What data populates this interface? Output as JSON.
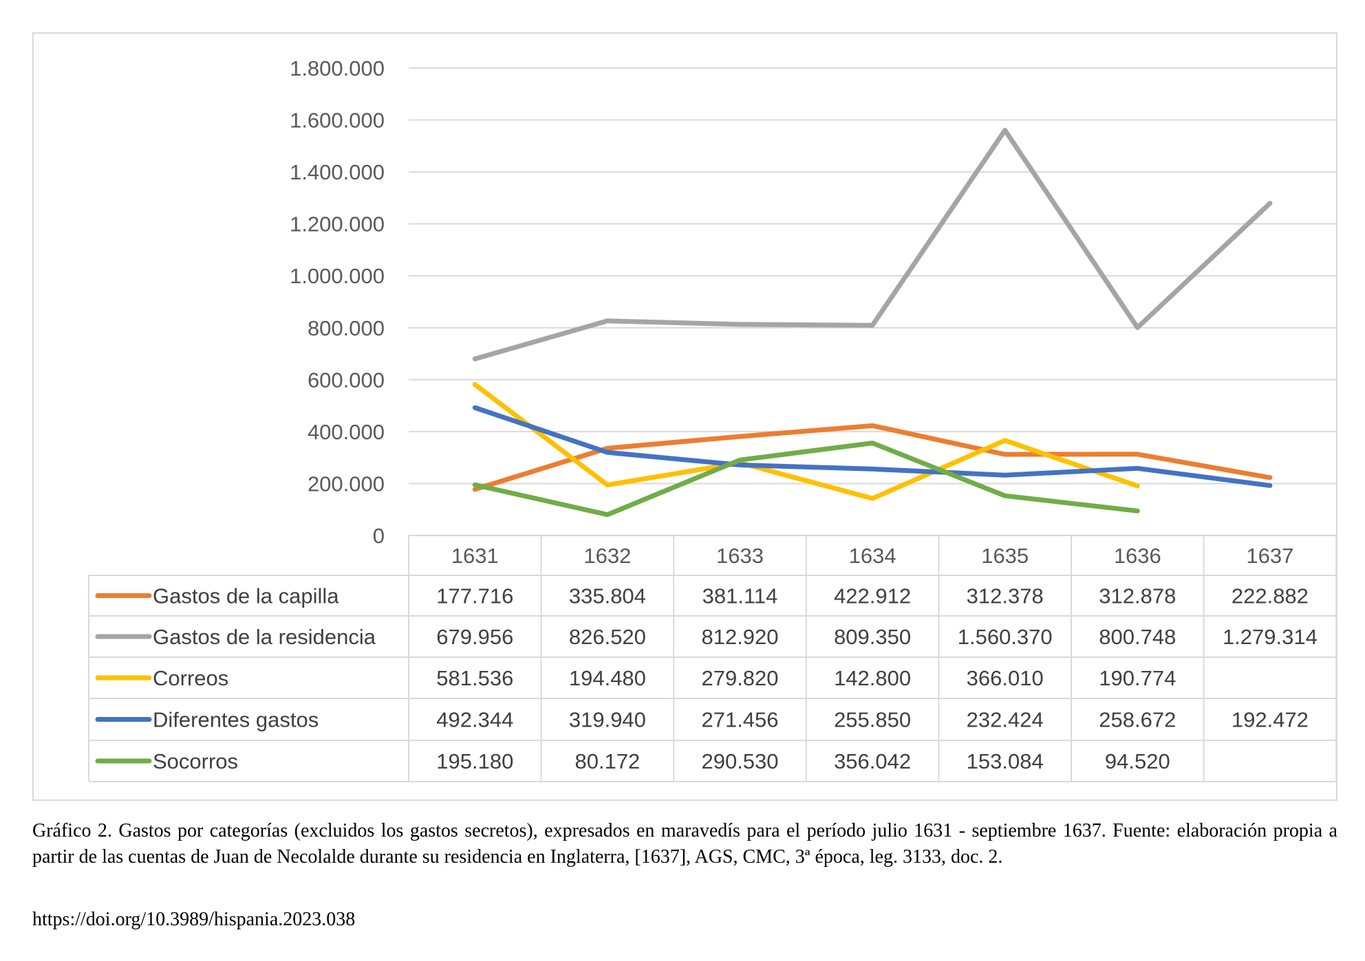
{
  "chart_data": {
    "type": "line",
    "categories": [
      "1631",
      "1632",
      "1633",
      "1634",
      "1635",
      "1636",
      "1637"
    ],
    "ylim": [
      0,
      1800000
    ],
    "yticks": [
      0,
      200000,
      400000,
      600000,
      800000,
      1000000,
      1200000,
      1400000,
      1600000,
      1800000
    ],
    "ytick_labels": [
      "0",
      "200.000",
      "400.000",
      "600.000",
      "800.000",
      "1.000.000",
      "1.200.000",
      "1.400.000",
      "1.600.000",
      "1.800.000"
    ],
    "grid": true,
    "legend": "data-table",
    "series": [
      {
        "name": "Gastos de la capilla",
        "color": "#ED7D31",
        "values": [
          177716,
          335804,
          381114,
          422912,
          312378,
          312878,
          222882
        ],
        "labels": [
          "177.716",
          "335.804",
          "381.114",
          "422.912",
          "312.378",
          "312.878",
          "222.882"
        ]
      },
      {
        "name": "Gastos de la residencia",
        "color": "#A5A5A5",
        "values": [
          679956,
          826520,
          812920,
          809350,
          1560370,
          800748,
          1279314
        ],
        "labels": [
          "679.956",
          "826.520",
          "812.920",
          "809.350",
          "1.560.370",
          "800.748",
          "1.279.314"
        ]
      },
      {
        "name": "Correos",
        "color": "#FFC000",
        "values": [
          581536,
          194480,
          279820,
          142800,
          366010,
          190774,
          null
        ],
        "labels": [
          "581.536",
          "194.480",
          "279.820",
          "142.800",
          "366.010",
          "190.774",
          ""
        ]
      },
      {
        "name": "Diferentes gastos",
        "color": "#4472C4",
        "values": [
          492344,
          319940,
          271456,
          255850,
          232424,
          258672,
          192472
        ],
        "labels": [
          "492.344",
          "319.940",
          "271.456",
          "255.850",
          "232.424",
          "258.672",
          "192.472"
        ]
      },
      {
        "name": "Socorros",
        "color": "#70AD47",
        "values": [
          195180,
          80172,
          290530,
          356042,
          153084,
          94520,
          null
        ],
        "labels": [
          "195.180",
          "80.172",
          "290.530",
          "356.042",
          "153.084",
          "94.520",
          ""
        ]
      }
    ]
  },
  "caption": {
    "text": "Gráfico 2. Gastos por categorías (excluidos los gastos secretos), expresados en maravedís para el período julio 1631 - septiembre 1637. Fuente: elaboración propia a partir de las cuentas de Juan de Necolalde durante su residencia en Inglaterra, [1637], AGS, CMC, 3ª época, leg. 3133, doc. 2.",
    "doi": "https://doi.org/10.3989/hispania.2023.038"
  }
}
